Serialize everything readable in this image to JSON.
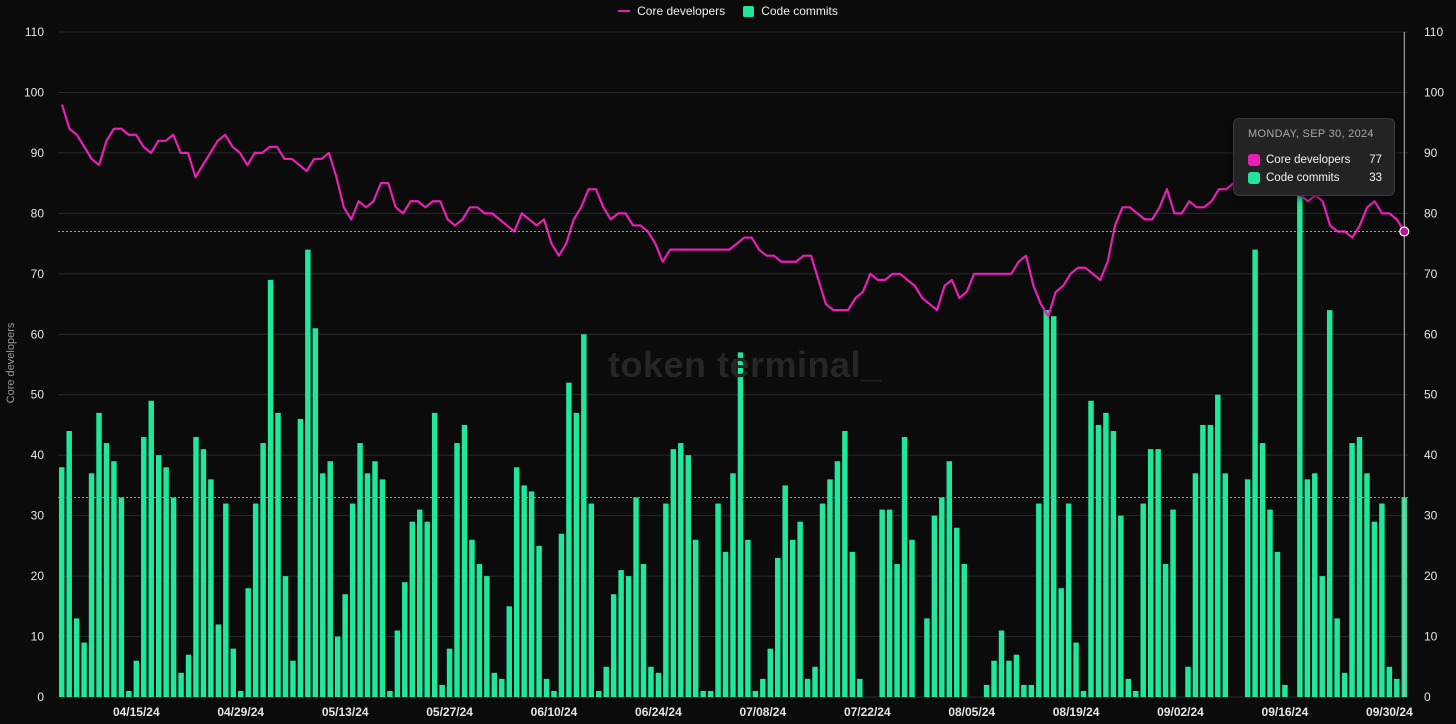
{
  "legend": {
    "line_label": "Core developers",
    "bar_label": "Code commits"
  },
  "watermark": "token terminal_",
  "tooltip": {
    "date": "MONDAY, SEP 30, 2024",
    "rows": [
      {
        "label": "Core developers",
        "value": "77",
        "color": "#e91fb8"
      },
      {
        "label": "Code commits",
        "value": "33",
        "color": "#1fe89c"
      }
    ]
  },
  "colors": {
    "line": "#e91fb8",
    "bar": "#1fe89c",
    "background": "#0b0b0b",
    "grid": "#2a2a2a"
  },
  "chart_data": {
    "type": "bar+line",
    "ylabel": "Core developers",
    "ylim": [
      0,
      110
    ],
    "y_ticks": [
      0,
      10,
      20,
      30,
      40,
      50,
      60,
      70,
      80,
      90,
      100,
      110
    ],
    "x_tick_labels": [
      "04/15/24",
      "04/29/24",
      "05/13/24",
      "05/27/24",
      "06/10/24",
      "06/24/24",
      "07/08/24",
      "07/22/24",
      "08/05/24",
      "08/19/24",
      "09/02/24",
      "09/16/24",
      "09/30/24"
    ],
    "x_start_date": "2024-04-05",
    "x_end_date": "2024-09-30",
    "series": [
      {
        "name": "Core developers",
        "type": "line",
        "axis": "left",
        "values": [
          98,
          94,
          93,
          91,
          89,
          88,
          92,
          94,
          94,
          93,
          93,
          91,
          90,
          92,
          92,
          93,
          90,
          90,
          86,
          88,
          90,
          92,
          93,
          91,
          90,
          88,
          90,
          90,
          91,
          91,
          89,
          89,
          88,
          87,
          89,
          89,
          90,
          86,
          81,
          79,
          82,
          81,
          82,
          85,
          85,
          81,
          80,
          82,
          82,
          81,
          82,
          82,
          79,
          78,
          79,
          81,
          81,
          80,
          80,
          79,
          78,
          77,
          80,
          79,
          78,
          79,
          75,
          73,
          75,
          79,
          81,
          84,
          84,
          81,
          79,
          80,
          80,
          78,
          78,
          77,
          75,
          72,
          74,
          74,
          74,
          74,
          74,
          74,
          74,
          74,
          74,
          75,
          76,
          76,
          74,
          73,
          73,
          72,
          72,
          72,
          73,
          73,
          69,
          65,
          64,
          64,
          64,
          66,
          67,
          70,
          69,
          69,
          70,
          70,
          69,
          68,
          66,
          65,
          64,
          68,
          69,
          66,
          67,
          70,
          70,
          70,
          70,
          70,
          70,
          72,
          73,
          68,
          65,
          63,
          67,
          68,
          70,
          71,
          71,
          70,
          69,
          72,
          78,
          81,
          81,
          80,
          79,
          79,
          81,
          84,
          80,
          80,
          82,
          81,
          81,
          82,
          84,
          84,
          85,
          86,
          86,
          86,
          85,
          84,
          84,
          85,
          84,
          83,
          82,
          83,
          82,
          78,
          77,
          77,
          76,
          78,
          81,
          82,
          80,
          80,
          79,
          77
        ]
      },
      {
        "name": "Code commits",
        "type": "bar",
        "axis": "right",
        "values": [
          38,
          44,
          13,
          9,
          37,
          47,
          42,
          39,
          33,
          1,
          6,
          43,
          49,
          40,
          38,
          33,
          4,
          7,
          43,
          41,
          36,
          12,
          32,
          8,
          1,
          18,
          32,
          42,
          69,
          47,
          20,
          6,
          46,
          74,
          61,
          37,
          39,
          10,
          17,
          32,
          42,
          37,
          39,
          36,
          1,
          11,
          19,
          29,
          31,
          29,
          47,
          2,
          8,
          42,
          45,
          26,
          22,
          20,
          4,
          3,
          15,
          38,
          35,
          34,
          25,
          3,
          1,
          27,
          52,
          47,
          60,
          32,
          1,
          5,
          17,
          21,
          20,
          33,
          22,
          5,
          4,
          32,
          41,
          42,
          40,
          26,
          1,
          1,
          32,
          24,
          37,
          57,
          26,
          1,
          3,
          8,
          23,
          35,
          26,
          29,
          3,
          5,
          32,
          36,
          39,
          44,
          24,
          3,
          0,
          0,
          31,
          31,
          22,
          43,
          26,
          0,
          13,
          30,
          33,
          39,
          28,
          22,
          0,
          0,
          2,
          6,
          11,
          6,
          7,
          2,
          2,
          32,
          64,
          63,
          18,
          32,
          9,
          1,
          49,
          45,
          47,
          44,
          30,
          3,
          1,
          32,
          41,
          41,
          22,
          31,
          0,
          5,
          37,
          45,
          45,
          50,
          37,
          0,
          0,
          36,
          74,
          42,
          31,
          24,
          2,
          0,
          84,
          36,
          37,
          20,
          64,
          13,
          4,
          42,
          43,
          37,
          29,
          32,
          5,
          3,
          33
        ]
      }
    ]
  }
}
